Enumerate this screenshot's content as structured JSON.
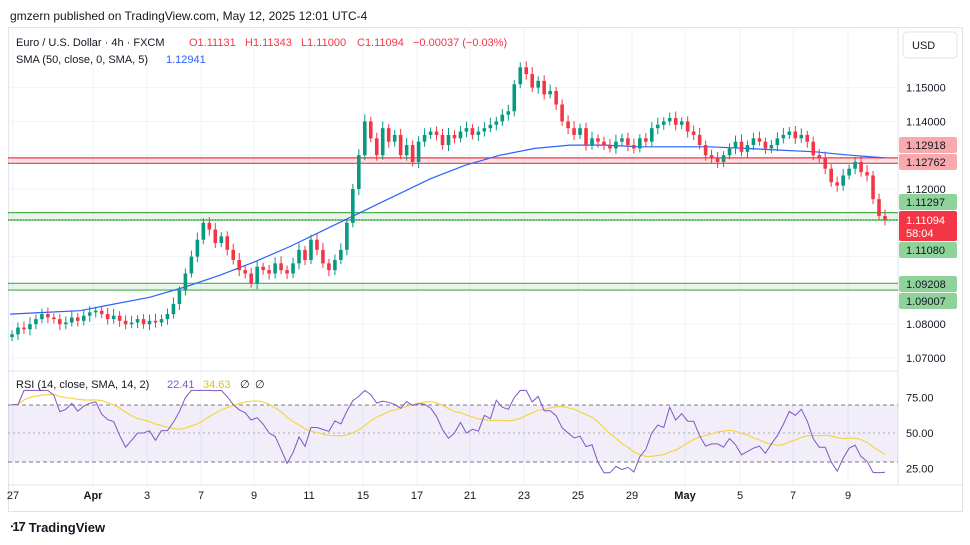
{
  "header": {
    "published_by": "gmzern published on TradingView.com, May 12, 2025 12:01 UTC-4"
  },
  "legend": {
    "symbol": "Euro / U.S. Dollar · 4h · FXCM",
    "open": "O1.11131",
    "high": "H1.11343",
    "low": "L1.11000",
    "close": "C1.11094",
    "change": "−0.00037 (−0.03%)",
    "sma_label": "SMA (50, close, 0, SMA, 5)",
    "sma_value": "1.12941"
  },
  "rsi_legend": {
    "label": "RSI (14, close, SMA, 14, 2)",
    "rsi": "22.41",
    "rsi_sma": "34.63",
    "extra1": "∅",
    "extra2": "∅"
  },
  "currency_button": "USD",
  "footer": {
    "brand": "TradingView"
  },
  "colors": {
    "up": "#089981",
    "down": "#f23645",
    "sma": "#2962ff",
    "rsi": "#7e57c2",
    "rsi_sma": "#f5d547",
    "resistance": "#f23645",
    "support": "#4caf50"
  },
  "chart_data": {
    "type": "candlestick",
    "timeframe": "4h",
    "ylim": [
      1.065,
      1.162
    ],
    "y_ticks": [
      "1.07000",
      "1.08000",
      "1.09000",
      "1.10000",
      "1.11000",
      "1.12000",
      "1.13000",
      "1.14000",
      "1.15000"
    ],
    "x_tick_labels": [
      "27",
      "Apr",
      "3",
      "7",
      "9",
      "11",
      "15",
      "17",
      "21",
      "23",
      "25",
      "29",
      "May",
      "5",
      "7",
      "9"
    ],
    "horizontal_levels": [
      {
        "label": "1.12918",
        "value": 1.1292,
        "color": "#f23645"
      },
      {
        "label": "1.12762",
        "value": 1.1276,
        "color": "#f23645"
      },
      {
        "label": "1.11297",
        "value": 1.113,
        "color": "#4caf50"
      },
      {
        "label": "1.11080",
        "value": 1.1108,
        "color": "#4caf50"
      },
      {
        "label": "1.09208",
        "value": 1.0921,
        "color": "#4caf50"
      },
      {
        "label": "1.09007",
        "value": 1.0901,
        "color": "#4caf50"
      }
    ],
    "last_price": {
      "label": "1.11094",
      "countdown": "58:04",
      "value": 1.11094
    },
    "close_series": [
      1.077,
      1.079,
      1.0785,
      1.08,
      1.0815,
      1.083,
      1.082,
      1.0815,
      1.08,
      1.0805,
      1.082,
      1.081,
      1.0825,
      1.0835,
      1.084,
      1.083,
      1.0815,
      1.0825,
      1.081,
      1.08,
      1.0805,
      1.0815,
      1.08,
      1.081,
      1.0805,
      1.0815,
      1.083,
      1.086,
      1.09,
      1.095,
      1.1,
      1.105,
      1.11,
      1.108,
      1.104,
      1.106,
      1.102,
      1.099,
      1.096,
      1.095,
      1.092,
      1.097,
      1.096,
      1.095,
      1.098,
      1.096,
      1.095,
      1.098,
      1.102,
      1.099,
      1.105,
      1.102,
      1.098,
      1.096,
      1.099,
      1.102,
      1.11,
      1.12,
      1.13,
      1.14,
      1.135,
      1.13,
      1.138,
      1.134,
      1.136,
      1.13,
      1.133,
      1.128,
      1.134,
      1.136,
      1.137,
      1.136,
      1.133,
      1.136,
      1.135,
      1.137,
      1.138,
      1.136,
      1.137,
      1.138,
      1.139,
      1.14,
      1.142,
      1.143,
      1.151,
      1.156,
      1.154,
      1.15,
      1.152,
      1.148,
      1.149,
      1.145,
      1.14,
      1.138,
      1.136,
      1.138,
      1.133,
      1.135,
      1.134,
      1.133,
      1.132,
      1.134,
      1.135,
      1.133,
      1.132,
      1.135,
      1.134,
      1.138,
      1.139,
      1.14,
      1.141,
      1.139,
      1.14,
      1.137,
      1.136,
      1.133,
      1.13,
      1.129,
      1.128,
      1.13,
      1.132,
      1.134,
      1.131,
      1.133,
      1.135,
      1.134,
      1.132,
      1.133,
      1.135,
      1.136,
      1.137,
      1.135,
      1.136,
      1.134,
      1.13,
      1.129,
      1.126,
      1.122,
      1.121,
      1.124,
      1.126,
      1.128,
      1.125,
      1.124,
      1.117,
      1.112,
      1.1109
    ],
    "sma_series": [
      1.083,
      1.0835,
      1.084,
      1.086,
      1.088,
      1.091,
      1.0945,
      1.0985,
      1.103,
      1.108,
      1.113,
      1.118,
      1.123,
      1.127,
      1.13,
      1.132,
      1.133,
      1.133,
      1.1325,
      1.1325,
      1.1325,
      1.132,
      1.1315,
      1.131,
      1.13,
      1.1292
    ],
    "rsi": {
      "ylim": [
        15,
        85
      ],
      "ticks": [
        "75.00",
        "50.00",
        "25.00"
      ],
      "upper": 70,
      "lower": 30,
      "last": 22.41,
      "sma_last": 34.63
    }
  }
}
